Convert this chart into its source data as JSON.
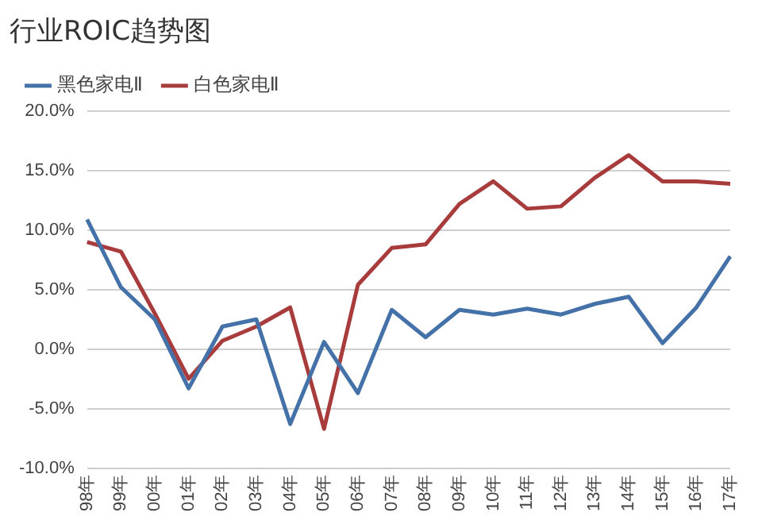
{
  "chart_data": {
    "type": "line",
    "title": "行业ROIC趋势图",
    "categories": [
      "98年",
      "99年",
      "00年",
      "01年",
      "02年",
      "03年",
      "04年",
      "05年",
      "06年",
      "07年",
      "08年",
      "09年",
      "10年",
      "11年",
      "12年",
      "13年",
      "14年",
      "15年",
      "16年",
      "17年"
    ],
    "series": [
      {
        "name": "黑色家电Ⅱ",
        "color": "#4472a8",
        "values": [
          10.9,
          5.2,
          2.5,
          -3.3,
          1.9,
          2.5,
          -6.3,
          0.6,
          -3.7,
          3.3,
          1.0,
          3.3,
          2.9,
          3.4,
          2.9,
          3.8,
          4.4,
          0.5,
          3.5,
          7.8
        ]
      },
      {
        "name": "白色家电Ⅱ",
        "color": "#a83c3c",
        "values": [
          9.0,
          8.2,
          3.0,
          -2.5,
          0.7,
          1.9,
          3.5,
          -6.7,
          5.4,
          8.5,
          8.8,
          12.2,
          14.1,
          11.8,
          12.0,
          14.4,
          16.3,
          14.1,
          14.1,
          13.9
        ]
      }
    ],
    "ylim": [
      -10,
      20
    ],
    "yticks": [
      {
        "value": -10,
        "label": "-10.0%"
      },
      {
        "value": -5,
        "label": "-5.0%"
      },
      {
        "value": 0,
        "label": "0.0%"
      },
      {
        "value": 5,
        "label": "5.0%"
      },
      {
        "value": 10,
        "label": "10.0%"
      },
      {
        "value": 15,
        "label": "15.0%"
      },
      {
        "value": 20,
        "label": "20.0%"
      }
    ],
    "grid": "y",
    "legend": "top left",
    "marker": "none",
    "line_style": "solid"
  }
}
